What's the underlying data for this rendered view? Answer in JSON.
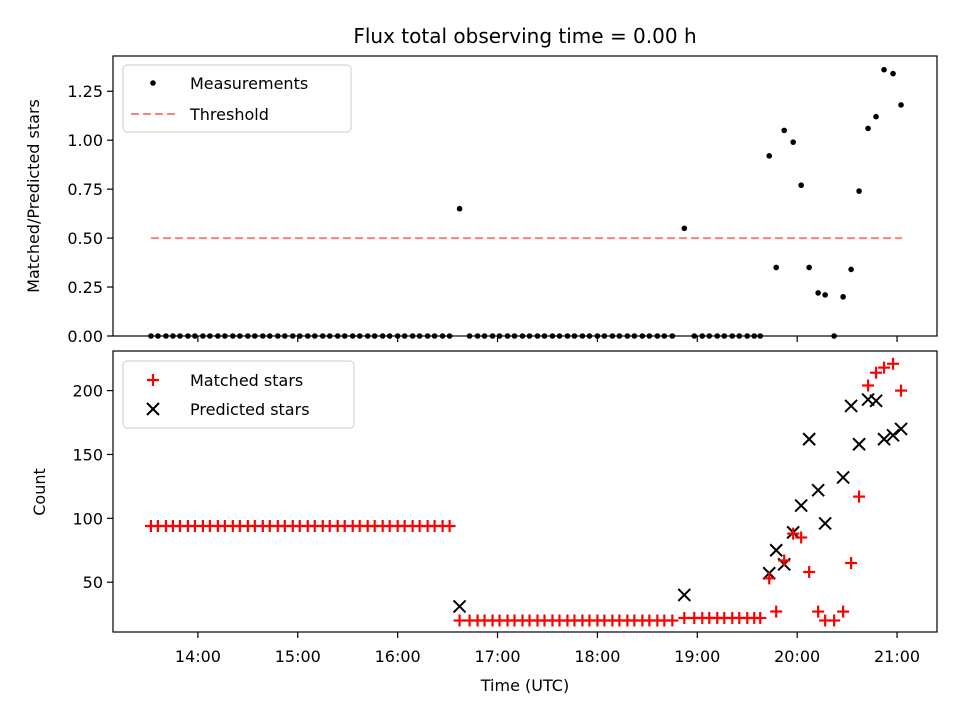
{
  "chart_data": [
    {
      "type": "scatter",
      "title": "Flux total observing time = 0.00 h",
      "xlabel": "",
      "ylabel": "Matched/Predicted stars",
      "xlim": [
        13.15,
        21.4
      ],
      "ylim": [
        0,
        1.43
      ],
      "yticks": [
        0.0,
        0.25,
        0.5,
        0.75,
        1.0,
        1.25
      ],
      "ytick_labels": [
        "0.00",
        "0.25",
        "0.50",
        "0.75",
        "1.00",
        "1.25"
      ],
      "legend": {
        "position": "top-left",
        "measurements": "Measurements",
        "threshold": "Threshold"
      },
      "threshold": {
        "value": 0.5,
        "x_range": [
          13.53,
          21.05
        ],
        "color": "#ff8080"
      },
      "series": [
        {
          "name": "Measurements",
          "color": "#000000",
          "x": [
            13.53,
            13.6,
            13.68,
            13.75,
            13.82,
            13.9,
            13.97,
            14.05,
            14.12,
            14.2,
            14.27,
            14.35,
            14.42,
            14.5,
            14.57,
            14.65,
            14.72,
            14.8,
            14.87,
            14.95,
            15.02,
            15.1,
            15.17,
            15.25,
            15.32,
            15.4,
            15.47,
            15.55,
            15.62,
            15.7,
            15.77,
            15.85,
            15.92,
            16.0,
            16.07,
            16.15,
            16.22,
            16.3,
            16.37,
            16.45,
            16.52,
            16.62,
            16.72,
            16.8,
            16.87,
            16.95,
            17.02,
            17.1,
            17.17,
            17.25,
            17.32,
            17.4,
            17.47,
            17.55,
            17.62,
            17.7,
            17.77,
            17.85,
            17.92,
            18.0,
            18.07,
            18.15,
            18.22,
            18.3,
            18.37,
            18.45,
            18.52,
            18.6,
            18.67,
            18.75,
            18.87,
            18.97,
            19.05,
            19.12,
            19.2,
            19.27,
            19.35,
            19.42,
            19.5,
            19.57,
            19.63,
            19.72,
            19.79,
            19.87,
            19.96,
            20.04,
            20.12,
            20.21,
            20.28,
            20.37,
            20.46,
            20.54,
            20.62,
            20.71,
            20.79,
            20.87,
            20.96,
            21.04
          ],
          "y": [
            0,
            0,
            0,
            0,
            0,
            0,
            0,
            0,
            0,
            0,
            0,
            0,
            0,
            0,
            0,
            0,
            0,
            0,
            0,
            0,
            0,
            0,
            0,
            0,
            0,
            0,
            0,
            0,
            0,
            0,
            0,
            0,
            0,
            0,
            0,
            0,
            0,
            0,
            0,
            0,
            0,
            0.65,
            0,
            0,
            0,
            0,
            0,
            0,
            0,
            0,
            0,
            0,
            0,
            0,
            0,
            0,
            0,
            0,
            0,
            0,
            0,
            0,
            0,
            0,
            0,
            0,
            0,
            0,
            0,
            0,
            0.55,
            0,
            0,
            0,
            0,
            0,
            0,
            0,
            0,
            0,
            0,
            0.92,
            0.35,
            1.05,
            0.99,
            0.77,
            0.35,
            0.22,
            0.21,
            0,
            0.2,
            0.34,
            0.74,
            1.06,
            1.12,
            1.36,
            1.34,
            1.18
          ]
        }
      ]
    },
    {
      "type": "scatter",
      "title": "",
      "xlabel": "Time (UTC)",
      "ylabel": "Count",
      "xlim": [
        13.15,
        21.4
      ],
      "ylim": [
        11,
        231
      ],
      "yticks": [
        50,
        100,
        150,
        200
      ],
      "ytick_labels": [
        "50",
        "100",
        "150",
        "200"
      ],
      "xticks": [
        14,
        15,
        16,
        17,
        18,
        19,
        20,
        21
      ],
      "xtick_labels": [
        "14:00",
        "15:00",
        "16:00",
        "17:00",
        "18:00",
        "19:00",
        "20:00",
        "21:00"
      ],
      "legend": {
        "position": "top-left",
        "matched": "Matched stars",
        "predicted": "Predicted stars"
      },
      "series": [
        {
          "name": "Matched stars",
          "marker": "+",
          "color": "#ff0000",
          "x": [
            13.53,
            13.6,
            13.68,
            13.75,
            13.82,
            13.9,
            13.97,
            14.05,
            14.12,
            14.2,
            14.27,
            14.35,
            14.42,
            14.5,
            14.57,
            14.65,
            14.72,
            14.8,
            14.87,
            14.95,
            15.02,
            15.1,
            15.17,
            15.25,
            15.32,
            15.4,
            15.47,
            15.55,
            15.62,
            15.7,
            15.77,
            15.85,
            15.92,
            16.0,
            16.07,
            16.15,
            16.22,
            16.3,
            16.37,
            16.45,
            16.52,
            16.62,
            16.72,
            16.8,
            16.87,
            16.95,
            17.02,
            17.1,
            17.17,
            17.25,
            17.32,
            17.4,
            17.47,
            17.55,
            17.62,
            17.7,
            17.77,
            17.85,
            17.92,
            18.0,
            18.07,
            18.15,
            18.22,
            18.3,
            18.37,
            18.45,
            18.52,
            18.6,
            18.67,
            18.75,
            18.87,
            18.97,
            19.05,
            19.12,
            19.2,
            19.27,
            19.35,
            19.42,
            19.5,
            19.57,
            19.63,
            19.72,
            19.79,
            19.87,
            19.96,
            20.04,
            20.12,
            20.21,
            20.28,
            20.37,
            20.46,
            20.54,
            20.62,
            20.71,
            20.79,
            20.87,
            20.96,
            21.04
          ],
          "y": [
            94,
            94,
            94,
            94,
            94,
            94,
            94,
            94,
            94,
            94,
            94,
            94,
            94,
            94,
            94,
            94,
            94,
            94,
            94,
            94,
            94,
            94,
            94,
            94,
            94,
            94,
            94,
            94,
            94,
            94,
            94,
            94,
            94,
            94,
            94,
            94,
            94,
            94,
            94,
            94,
            94,
            20,
            20,
            20,
            20,
            20,
            20,
            20,
            20,
            20,
            20,
            20,
            20,
            20,
            20,
            20,
            20,
            20,
            20,
            20,
            20,
            20,
            20,
            20,
            20,
            20,
            20,
            20,
            20,
            20,
            22,
            22,
            22,
            22,
            22,
            22,
            22,
            22,
            22,
            22,
            22,
            53,
            27,
            67,
            88,
            85,
            58,
            27,
            20,
            20,
            27,
            65,
            117,
            204,
            214,
            218,
            221,
            200
          ]
        },
        {
          "name": "Predicted stars",
          "marker": "x",
          "color": "#000000",
          "x": [
            16.62,
            18.87,
            19.72,
            19.79,
            19.87,
            19.96,
            20.04,
            20.12,
            20.21,
            20.28,
            20.46,
            20.54,
            20.62,
            20.71,
            20.79,
            20.87,
            20.96,
            21.04
          ],
          "y": [
            31,
            40,
            57,
            75,
            64,
            89,
            110,
            162,
            122,
            96,
            132,
            188,
            158,
            193,
            192,
            162,
            165,
            170
          ]
        }
      ]
    }
  ]
}
